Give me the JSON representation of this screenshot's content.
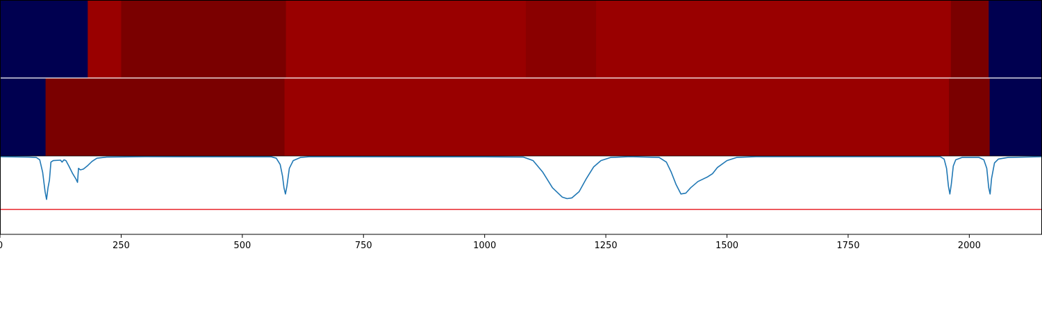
{
  "chart_data": {
    "type": "heatmap",
    "x_range": [
      0,
      2150
    ],
    "ticks": [
      {
        "value": 0,
        "label": "0"
      },
      {
        "value": 250,
        "label": "250"
      },
      {
        "value": 500,
        "label": "500"
      },
      {
        "value": 750,
        "label": "750"
      },
      {
        "value": 1000,
        "label": "1000"
      },
      {
        "value": 1250,
        "label": "1250"
      },
      {
        "value": 1500,
        "label": "1500"
      },
      {
        "value": 1750,
        "label": "1750"
      },
      {
        "value": 2000,
        "label": "2000"
      }
    ],
    "colors": {
      "navy": "#000050",
      "red": "#990000",
      "dark_red": "#7a0000",
      "mid_red": "#8a0000",
      "line": "#1f77b4",
      "threshold": "#e8262b"
    },
    "segment_rows": [
      {
        "segments": [
          {
            "start": 0,
            "end": 181,
            "color": "navy"
          },
          {
            "start": 181,
            "end": 250,
            "color": "red"
          },
          {
            "start": 250,
            "end": 590,
            "color": "dark_red"
          },
          {
            "start": 590,
            "end": 1085,
            "color": "red"
          },
          {
            "start": 1085,
            "end": 1230,
            "color": "mid_red"
          },
          {
            "start": 1230,
            "end": 1962,
            "color": "red"
          },
          {
            "start": 1962,
            "end": 2040,
            "color": "dark_red"
          },
          {
            "start": 2040,
            "end": 2150,
            "color": "navy"
          }
        ]
      },
      {
        "segments": [
          {
            "start": 0,
            "end": 94,
            "color": "navy"
          },
          {
            "start": 94,
            "end": 587,
            "color": "dark_red"
          },
          {
            "start": 587,
            "end": 1958,
            "color": "red"
          },
          {
            "start": 1958,
            "end": 2042,
            "color": "dark_red"
          },
          {
            "start": 2042,
            "end": 2150,
            "color": "navy"
          }
        ]
      }
    ],
    "line_plot": {
      "ylim": [
        0,
        1
      ],
      "threshold": 0.32,
      "points": [
        [
          0,
          1.0
        ],
        [
          60,
          0.995
        ],
        [
          75,
          0.99
        ],
        [
          82,
          0.96
        ],
        [
          88,
          0.8
        ],
        [
          93,
          0.55
        ],
        [
          96,
          0.45
        ],
        [
          99,
          0.6
        ],
        [
          102,
          0.7
        ],
        [
          105,
          0.93
        ],
        [
          110,
          0.95
        ],
        [
          125,
          0.955
        ],
        [
          128,
          0.93
        ],
        [
          132,
          0.96
        ],
        [
          136,
          0.95
        ],
        [
          142,
          0.88
        ],
        [
          150,
          0.78
        ],
        [
          157,
          0.71
        ],
        [
          160,
          0.67
        ],
        [
          162,
          0.85
        ],
        [
          166,
          0.83
        ],
        [
          172,
          0.84
        ],
        [
          180,
          0.88
        ],
        [
          190,
          0.94
        ],
        [
          200,
          0.98
        ],
        [
          220,
          0.995
        ],
        [
          300,
          1.0
        ],
        [
          560,
          0.998
        ],
        [
          570,
          0.98
        ],
        [
          578,
          0.9
        ],
        [
          583,
          0.75
        ],
        [
          586,
          0.6
        ],
        [
          589,
          0.52
        ],
        [
          592,
          0.62
        ],
        [
          597,
          0.85
        ],
        [
          605,
          0.95
        ],
        [
          620,
          0.99
        ],
        [
          640,
          1.0
        ],
        [
          1000,
          0.998
        ],
        [
          1080,
          0.995
        ],
        [
          1100,
          0.95
        ],
        [
          1120,
          0.8
        ],
        [
          1140,
          0.6
        ],
        [
          1160,
          0.48
        ],
        [
          1170,
          0.46
        ],
        [
          1180,
          0.47
        ],
        [
          1195,
          0.55
        ],
        [
          1210,
          0.72
        ],
        [
          1225,
          0.87
        ],
        [
          1240,
          0.95
        ],
        [
          1260,
          0.99
        ],
        [
          1300,
          1.0
        ],
        [
          1360,
          0.99
        ],
        [
          1375,
          0.93
        ],
        [
          1385,
          0.8
        ],
        [
          1395,
          0.64
        ],
        [
          1405,
          0.52
        ],
        [
          1415,
          0.53
        ],
        [
          1425,
          0.6
        ],
        [
          1440,
          0.68
        ],
        [
          1460,
          0.74
        ],
        [
          1470,
          0.78
        ],
        [
          1480,
          0.86
        ],
        [
          1500,
          0.95
        ],
        [
          1520,
          0.99
        ],
        [
          1560,
          1.0
        ],
        [
          1940,
          1.0
        ],
        [
          1948,
          0.97
        ],
        [
          1953,
          0.85
        ],
        [
          1957,
          0.62
        ],
        [
          1960,
          0.52
        ],
        [
          1963,
          0.65
        ],
        [
          1967,
          0.88
        ],
        [
          1972,
          0.96
        ],
        [
          1985,
          0.99
        ],
        [
          2020,
          0.99
        ],
        [
          2030,
          0.96
        ],
        [
          2036,
          0.85
        ],
        [
          2040,
          0.6
        ],
        [
          2043,
          0.52
        ],
        [
          2046,
          0.72
        ],
        [
          2052,
          0.92
        ],
        [
          2060,
          0.97
        ],
        [
          2080,
          0.99
        ],
        [
          2150,
          1.0
        ]
      ]
    }
  }
}
